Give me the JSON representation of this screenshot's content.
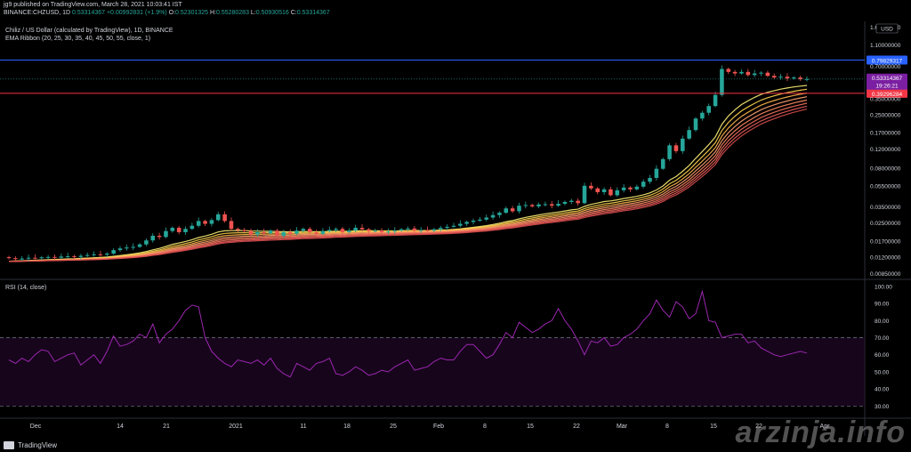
{
  "header": {
    "publisher_line": "jg9 published on TradingView.com, March 28, 2021 10:03:41 IST",
    "symbol": "BINANCE:CHZUSD, 1D",
    "last": "0.53314367",
    "change": "+0.00992831 (+1.9%)",
    "o_label": "O:",
    "o": "0.52301325",
    "h_label": "H:",
    "h": "0.55280283",
    "l_label": "L:",
    "l": "0.50930516",
    "c_label": "C:",
    "c": "0.53314367"
  },
  "legend": {
    "title": "Chiliz / US Dollar (calculated by TradingView), 1D, BINANCE",
    "indicator": "EMA Ribbon (20, 25, 30, 35, 40, 45, 50, 55, close, 1)",
    "rsi": "RSI (14, close)"
  },
  "branding": {
    "tradingview": "TradingView",
    "watermark": "arzinja.info"
  },
  "colors": {
    "up": "#26a69a",
    "down": "#ef5350",
    "rsi": "#9c27b0",
    "blue_line": "#2962ff",
    "red_line": "#f23645"
  },
  "chart_data": [
    {
      "type": "candlestick",
      "title": "Chiliz / US Dollar (calculated by TradingView), 1D, BINANCE",
      "scale": "log",
      "currency": "USD",
      "price_ticks": [
        "1.60000000",
        "1.10000000",
        "0.70000000",
        "0.50000000",
        "0.35000000",
        "0.25000000",
        "0.17000000",
        "0.12000000",
        "0.08000000",
        "0.05500000",
        "0.03500000",
        "0.02500000",
        "0.01700000",
        "0.01200000",
        "0.00850000"
      ],
      "price_tick_values": [
        1.6,
        1.1,
        0.7,
        0.5,
        0.35,
        0.25,
        0.17,
        0.12,
        0.08,
        0.055,
        0.035,
        0.025,
        0.017,
        0.012,
        0.0085
      ],
      "x_labels": [
        "Dec",
        "14",
        "21",
        "2021",
        "11",
        "18",
        "25",
        "Feb",
        "8",
        "15",
        "22",
        "Mar",
        "8",
        "15",
        "22",
        "Apr"
      ],
      "horizontal_lines": [
        {
          "label": "0.79829317",
          "value": 0.79829317,
          "color": "#2962ff"
        },
        {
          "label": "0.39296284",
          "value": 0.39296284,
          "color": "#f23645"
        }
      ],
      "last_price_label": "0.53314367",
      "countdown": "19:26:21",
      "series": [
        {
          "name": "CHZUSD",
          "close": [
            0.0118,
            0.0116,
            0.0117,
            0.0119,
            0.0118,
            0.012,
            0.0121,
            0.0119,
            0.0122,
            0.0123,
            0.0121,
            0.0124,
            0.0126,
            0.0128,
            0.0127,
            0.013,
            0.014,
            0.0145,
            0.0148,
            0.015,
            0.0158,
            0.0172,
            0.019,
            0.0185,
            0.021,
            0.0225,
            0.0205,
            0.022,
            0.0235,
            0.026,
            0.0245,
            0.0265,
            0.03,
            0.026,
            0.022,
            0.0215,
            0.021,
            0.0195,
            0.0205,
            0.02,
            0.0212,
            0.019,
            0.0205,
            0.0198,
            0.0212,
            0.022,
            0.0205,
            0.0198,
            0.021,
            0.0215,
            0.022,
            0.0205,
            0.0212,
            0.0225,
            0.0218,
            0.021,
            0.0212,
            0.0205,
            0.0208,
            0.0212,
            0.0218,
            0.0222,
            0.0212,
            0.0215,
            0.0212,
            0.0218,
            0.0225,
            0.023,
            0.0235,
            0.0245,
            0.0255,
            0.0262,
            0.0268,
            0.028,
            0.0295,
            0.031,
            0.034,
            0.032,
            0.036,
            0.0365,
            0.0355,
            0.037,
            0.0372,
            0.036,
            0.0375,
            0.039,
            0.04,
            0.038,
            0.055,
            0.052,
            0.048,
            0.051,
            0.045,
            0.05,
            0.053,
            0.051,
            0.054,
            0.06,
            0.065,
            0.079,
            0.097,
            0.13,
            0.115,
            0.15,
            0.18,
            0.23,
            0.26,
            0.3,
            0.38,
            0.66,
            0.62,
            0.6,
            0.62,
            0.58,
            0.6,
            0.61,
            0.57,
            0.55,
            0.56,
            0.54,
            0.55,
            0.53,
            0.533
          ]
        }
      ]
    },
    {
      "type": "line",
      "title": "RSI (14, close)",
      "y_ticks": [
        "100.00",
        "90.00",
        "80.00",
        "70.00",
        "60.00",
        "50.00",
        "40.00",
        "30.00"
      ],
      "y_tick_values": [
        100,
        90,
        80,
        70,
        60,
        50,
        40,
        30
      ],
      "bands": [
        70,
        30
      ],
      "series": [
        {
          "name": "RSI",
          "values": [
            57,
            55,
            58,
            56,
            60,
            63,
            62,
            56,
            58,
            60,
            61,
            54,
            57,
            60,
            55,
            62,
            71,
            65,
            66,
            68,
            72,
            70,
            78,
            67,
            72,
            75,
            80,
            86,
            89,
            88,
            70,
            62,
            58,
            55,
            53,
            57,
            56,
            55,
            57,
            54,
            58,
            52,
            49,
            47,
            55,
            53,
            51,
            55,
            56,
            58,
            49,
            48,
            50,
            53,
            51,
            48,
            49,
            51,
            50,
            53,
            55,
            57,
            51,
            52,
            53,
            56,
            58,
            57,
            57,
            62,
            66,
            66,
            62,
            58,
            60,
            66,
            73,
            70,
            79,
            76,
            73,
            75,
            78,
            80,
            87,
            80,
            75,
            68,
            60,
            68,
            67,
            70,
            65,
            66,
            70,
            72,
            75,
            80,
            84,
            92,
            86,
            82,
            91,
            88,
            81,
            84,
            97,
            80,
            79,
            70,
            71,
            72,
            72,
            67,
            68,
            64,
            62,
            60,
            59,
            60,
            61,
            62,
            61
          ]
        }
      ]
    }
  ]
}
